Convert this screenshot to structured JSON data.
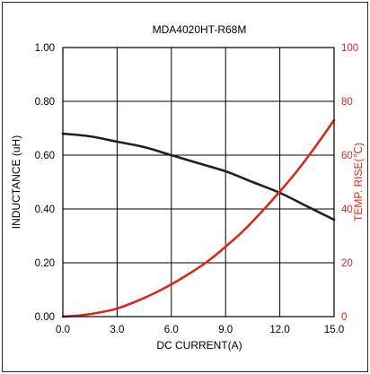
{
  "chart_data": {
    "type": "line",
    "title": "MDA4020HT-R68M",
    "xlabel": "DC CURRENT(A)",
    "ylabel_left": "INDUCTANCE (uH)",
    "ylabel_right": "TEMP. RISE(℃)",
    "xlim": [
      0,
      15
    ],
    "ylim_left": [
      0,
      1.0
    ],
    "ylim_right": [
      0,
      100
    ],
    "x_ticks": [
      "0.0",
      "3.0",
      "6.0",
      "9.0",
      "12.0",
      "15.0"
    ],
    "y_left_ticks": [
      "0.00",
      "0.20",
      "0.40",
      "0.60",
      "0.80",
      "1.00"
    ],
    "y_right_ticks": [
      "0",
      "20",
      "40",
      "60",
      "80",
      "100"
    ],
    "grid": true,
    "colors": {
      "inductance": "#231f20",
      "temp_rise": "#d42a20",
      "right_axis": "#d42a20"
    },
    "series": [
      {
        "axis": "left",
        "x": [
          0,
          1.5,
          3,
          4.5,
          6,
          7.5,
          9,
          10.5,
          12,
          13.5,
          15
        ],
        "y": [
          0.68,
          0.67,
          0.65,
          0.63,
          0.6,
          0.57,
          0.54,
          0.5,
          0.46,
          0.41,
          0.36
        ]
      },
      {
        "axis": "right",
        "x": [
          0,
          1,
          2,
          3,
          4,
          5,
          6,
          7,
          8,
          9,
          10,
          11,
          12,
          13,
          14,
          15
        ],
        "y": [
          0,
          0.5,
          1.5,
          3,
          5.5,
          8.5,
          12,
          16,
          20.5,
          26,
          32,
          39,
          46.5,
          54.5,
          63.5,
          73
        ]
      }
    ]
  }
}
